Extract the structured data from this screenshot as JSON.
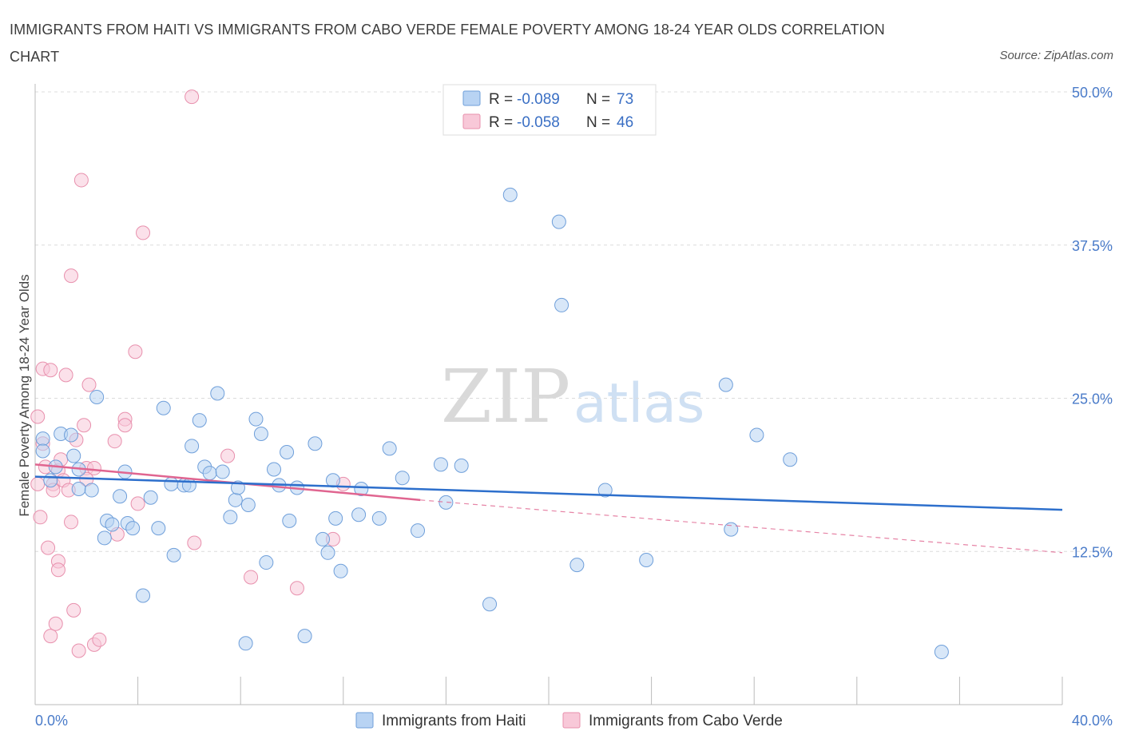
{
  "header": {
    "title": "IMMIGRANTS FROM HAITI VS IMMIGRANTS FROM CABO VERDE FEMALE POVERTY AMONG 18-24 YEAR OLDS CORRELATION CHART",
    "source": "Source: ZipAtlas.com"
  },
  "watermark": {
    "zip": "ZIP",
    "atlas": "atlas"
  },
  "legend": {
    "r_label": "R =",
    "n_label": "N =",
    "haiti_r": "-0.089",
    "haiti_n": "73",
    "cabo_r": "-0.058",
    "cabo_n": "46"
  },
  "chart_data": {
    "type": "scatter",
    "title": "IMMIGRANTS FROM HAITI VS IMMIGRANTS FROM CABO VERDE FEMALE POVERTY AMONG 18-24 YEAR OLDS CORRELATION CHART",
    "xlabel": "",
    "ylabel": "Female Poverty Among 18-24 Year Olds",
    "xlim": [
      0,
      40
    ],
    "ylim": [
      0,
      50
    ],
    "x_tick_labels": [
      "0.0%",
      "40.0%"
    ],
    "y_ticks": [
      12.5,
      25.0,
      37.5,
      50.0
    ],
    "y_tick_labels": [
      "12.5%",
      "25.0%",
      "37.5%",
      "50.0%"
    ],
    "grid": true,
    "legend_position": "top-center",
    "colors": {
      "haiti_fill": "#b8d3f3",
      "haiti_stroke": "#6f9fda",
      "haiti_line": "#2d6fcc",
      "cabo_fill": "#f8c8d8",
      "cabo_stroke": "#e890ad",
      "cabo_line": "#e06590"
    },
    "series": [
      {
        "name": "Immigrants from Haiti",
        "r": -0.089,
        "n": 73,
        "trend": {
          "x": [
            0,
            40
          ],
          "y": [
            18.6,
            15.9
          ]
        },
        "points": [
          [
            0.3,
            21.7
          ],
          [
            0.3,
            20.7
          ],
          [
            0.6,
            18.3
          ],
          [
            0.8,
            19.4
          ],
          [
            1.0,
            22.1
          ],
          [
            1.4,
            22.0
          ],
          [
            1.5,
            20.3
          ],
          [
            1.7,
            19.2
          ],
          [
            1.7,
            17.6
          ],
          [
            2.2,
            17.5
          ],
          [
            2.4,
            25.1
          ],
          [
            2.7,
            13.6
          ],
          [
            2.8,
            15.0
          ],
          [
            3.0,
            14.7
          ],
          [
            3.3,
            17.0
          ],
          [
            3.5,
            19.0
          ],
          [
            3.6,
            14.8
          ],
          [
            3.8,
            14.4
          ],
          [
            4.2,
            8.9
          ],
          [
            4.5,
            16.9
          ],
          [
            4.8,
            14.4
          ],
          [
            5.0,
            24.2
          ],
          [
            5.3,
            18.0
          ],
          [
            5.4,
            12.2
          ],
          [
            5.8,
            17.9
          ],
          [
            6.0,
            17.9
          ],
          [
            6.1,
            21.1
          ],
          [
            6.4,
            23.2
          ],
          [
            6.6,
            19.4
          ],
          [
            6.8,
            18.9
          ],
          [
            7.1,
            25.4
          ],
          [
            7.3,
            19.0
          ],
          [
            7.6,
            15.3
          ],
          [
            7.8,
            16.7
          ],
          [
            7.9,
            17.7
          ],
          [
            8.2,
            5.0
          ],
          [
            8.3,
            16.3
          ],
          [
            8.6,
            23.3
          ],
          [
            8.8,
            22.1
          ],
          [
            9.0,
            11.6
          ],
          [
            9.3,
            19.2
          ],
          [
            9.5,
            17.9
          ],
          [
            9.8,
            20.6
          ],
          [
            9.9,
            15.0
          ],
          [
            10.2,
            17.7
          ],
          [
            10.5,
            5.6
          ],
          [
            10.9,
            21.3
          ],
          [
            11.2,
            13.5
          ],
          [
            11.4,
            12.4
          ],
          [
            11.6,
            18.3
          ],
          [
            11.7,
            15.2
          ],
          [
            11.9,
            10.9
          ],
          [
            12.6,
            15.5
          ],
          [
            12.7,
            17.6
          ],
          [
            13.4,
            15.2
          ],
          [
            13.8,
            20.9
          ],
          [
            14.3,
            18.5
          ],
          [
            14.9,
            14.2
          ],
          [
            15.8,
            19.6
          ],
          [
            16.0,
            16.5
          ],
          [
            16.6,
            19.5
          ],
          [
            17.7,
            8.2
          ],
          [
            18.5,
            41.6
          ],
          [
            20.4,
            39.4
          ],
          [
            20.5,
            32.6
          ],
          [
            21.1,
            11.4
          ],
          [
            22.2,
            17.5
          ],
          [
            23.8,
            11.8
          ],
          [
            26.9,
            26.1
          ],
          [
            27.1,
            14.3
          ],
          [
            28.1,
            22.0
          ],
          [
            29.4,
            20.0
          ],
          [
            35.3,
            4.3
          ]
        ]
      },
      {
        "name": "Immigrants from Cabo Verde",
        "r": -0.058,
        "n": 46,
        "trend": {
          "x": [
            0,
            15
          ],
          "y": [
            19.6,
            16.7
          ],
          "dashed_to": [
            40,
            12.4
          ]
        },
        "points": [
          [
            0.1,
            23.5
          ],
          [
            0.1,
            18.0
          ],
          [
            0.2,
            15.3
          ],
          [
            0.3,
            27.4
          ],
          [
            0.3,
            21.3
          ],
          [
            0.4,
            19.4
          ],
          [
            0.5,
            12.8
          ],
          [
            0.6,
            27.3
          ],
          [
            0.6,
            5.6
          ],
          [
            0.7,
            18.0
          ],
          [
            0.7,
            17.5
          ],
          [
            0.8,
            6.6
          ],
          [
            0.9,
            11.7
          ],
          [
            0.9,
            11.0
          ],
          [
            0.9,
            19.1
          ],
          [
            1.0,
            20.0
          ],
          [
            1.1,
            18.3
          ],
          [
            1.2,
            26.9
          ],
          [
            1.3,
            17.5
          ],
          [
            1.4,
            14.9
          ],
          [
            1.4,
            35.0
          ],
          [
            1.5,
            7.7
          ],
          [
            1.6,
            21.6
          ],
          [
            1.7,
            4.4
          ],
          [
            1.8,
            42.8
          ],
          [
            1.9,
            22.8
          ],
          [
            2.0,
            19.3
          ],
          [
            2.0,
            18.4
          ],
          [
            2.1,
            26.1
          ],
          [
            2.3,
            19.3
          ],
          [
            2.3,
            4.9
          ],
          [
            2.5,
            5.3
          ],
          [
            3.1,
            21.5
          ],
          [
            3.2,
            13.9
          ],
          [
            3.5,
            23.3
          ],
          [
            3.5,
            22.8
          ],
          [
            3.9,
            28.8
          ],
          [
            4.0,
            16.4
          ],
          [
            4.2,
            38.5
          ],
          [
            6.1,
            49.6
          ],
          [
            6.2,
            13.2
          ],
          [
            7.5,
            20.3
          ],
          [
            8.4,
            10.4
          ],
          [
            10.2,
            9.5
          ],
          [
            11.6,
            13.5
          ],
          [
            12.0,
            18.0
          ]
        ]
      }
    ]
  },
  "bottom_legend": {
    "haiti_label": "Immigrants from Haiti",
    "cabo_label": "Immigrants from Cabo Verde"
  }
}
